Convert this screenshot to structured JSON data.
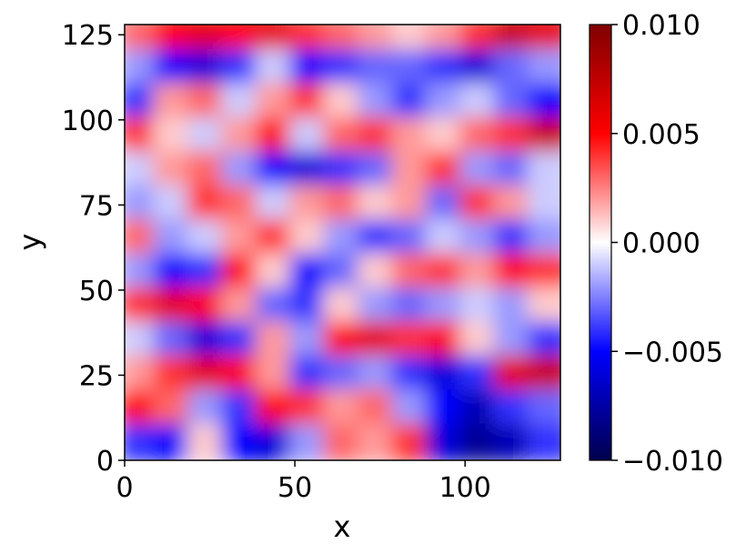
{
  "chart_data": {
    "type": "heatmap",
    "title": "",
    "xlabel": "x",
    "ylabel": "y",
    "xlim": [
      0,
      128
    ],
    "ylim": [
      0,
      128
    ],
    "x_ticks": [
      0,
      50,
      100
    ],
    "y_ticks": [
      0,
      25,
      50,
      75,
      100,
      125
    ],
    "colormap": "seismic",
    "colors": {
      "low": "#00004d",
      "mid": "#ffffff",
      "high": "#800000"
    },
    "color_range": [
      -0.01,
      0.01
    ],
    "colorbar_ticks": [
      0.01,
      0.005,
      0.0,
      -0.005,
      -0.01
    ],
    "colorbar_tick_labels": [
      "0.010",
      "0.005",
      "0.000",
      "−0.005",
      "−0.010"
    ],
    "grid": false,
    "description_of_field": "Horizontally elongated streaks alternating between positive and negative values",
    "rows_y": [
      125,
      115,
      105,
      95,
      85,
      75,
      65,
      55,
      45,
      35,
      25,
      15,
      5
    ],
    "cols_x": [
      5,
      15,
      25,
      35,
      45,
      55,
      65,
      75,
      85,
      95,
      105,
      115,
      125
    ],
    "values": [
      [
        0.003,
        0.005,
        0.006,
        0.005,
        0.006,
        0.004,
        0.003,
        0.002,
        0.001,
        0.002,
        0.004,
        0.007,
        0.006
      ],
      [
        -0.002,
        -0.005,
        -0.006,
        -0.004,
        -0.001,
        -0.005,
        -0.004,
        -0.003,
        -0.003,
        -0.004,
        -0.006,
        -0.003,
        -0.002
      ],
      [
        -0.004,
        0.002,
        0.003,
        -0.001,
        0.002,
        0.004,
        0.001,
        -0.002,
        -0.004,
        -0.002,
        -0.001,
        -0.003,
        -0.005
      ],
      [
        0.004,
        0.001,
        -0.001,
        0.002,
        0.005,
        -0.001,
        0.003,
        0.004,
        0.002,
        0.001,
        0.003,
        0.004,
        0.007
      ],
      [
        -0.001,
        0.002,
        0.003,
        -0.002,
        -0.005,
        -0.006,
        -0.004,
        -0.003,
        0.002,
        0.004,
        -0.002,
        -0.003,
        -0.001
      ],
      [
        -0.002,
        -0.001,
        0.004,
        0.003,
        -0.001,
        0.002,
        0.003,
        0.001,
        0.002,
        -0.003,
        0.004,
        0.002,
        -0.001
      ],
      [
        0.003,
        -0.002,
        -0.001,
        0.002,
        0.004,
        0.001,
        -0.002,
        -0.004,
        -0.003,
        -0.001,
        -0.002,
        -0.004,
        -0.002
      ],
      [
        -0.002,
        -0.005,
        -0.004,
        0.005,
        0.001,
        -0.005,
        -0.003,
        0.001,
        0.003,
        0.004,
        0.002,
        0.005,
        0.004
      ],
      [
        0.004,
        0.006,
        0.005,
        0.002,
        -0.003,
        -0.004,
        0.001,
        -0.002,
        -0.003,
        -0.002,
        -0.001,
        -0.002,
        0.001
      ],
      [
        -0.001,
        -0.003,
        -0.006,
        -0.004,
        0.002,
        -0.002,
        0.005,
        0.006,
        0.004,
        0.005,
        0.001,
        -0.002,
        -0.004
      ],
      [
        0.002,
        0.004,
        0.006,
        0.005,
        0.002,
        -0.004,
        -0.003,
        -0.002,
        -0.004,
        -0.006,
        -0.004,
        0.006,
        0.007
      ],
      [
        0.005,
        0.003,
        -0.002,
        -0.004,
        0.005,
        0.004,
        0.002,
        0.003,
        -0.002,
        -0.005,
        -0.007,
        -0.004,
        -0.003
      ],
      [
        -0.004,
        -0.005,
        0.001,
        -0.005,
        -0.006,
        -0.002,
        0.003,
        0.002,
        0.004,
        -0.006,
        -0.008,
        -0.007,
        -0.004
      ]
    ]
  }
}
